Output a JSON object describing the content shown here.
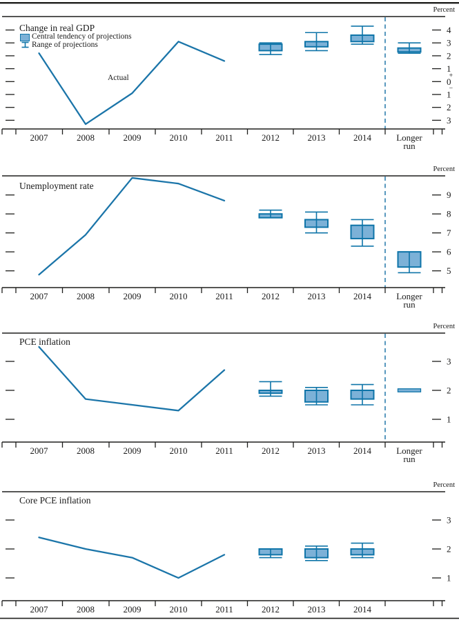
{
  "figure": {
    "unit_label": "Percent"
  },
  "legend": {
    "central_tendency": "Central tendency of projections",
    "range": "Range of projections"
  },
  "x_axis": {
    "years": [
      "2007",
      "2008",
      "2009",
      "2010",
      "2011",
      "2012",
      "2013",
      "2014"
    ],
    "longer_run_lines": [
      "Longer",
      "run"
    ]
  },
  "colors": {
    "line": "#1b75a9",
    "box_fill": "#7cb1d7",
    "box_border": "#0e74a8",
    "separator": "#2e7fae",
    "axis": "#1d1d1b",
    "text": "#1a1a1a"
  },
  "chart_data": [
    {
      "id": "change-in-real-gdp",
      "type": "line+box",
      "title": "Change in real GDP",
      "unit": "Percent",
      "y_ticks": [
        4,
        3,
        2,
        1,
        0,
        -1,
        -2,
        -3
      ],
      "y_tick_labels": [
        "4",
        "3",
        "2",
        "1",
        "0",
        "1",
        "2",
        "3"
      ],
      "sign_labels": [
        "+",
        "−"
      ],
      "actual": {
        "label": "Actual",
        "years": [
          "2007",
          "2008",
          "2009",
          "2010",
          "2011"
        ],
        "values": [
          2.2,
          -3.3,
          -0.9,
          3.1,
          1.6
        ]
      },
      "projections": [
        {
          "period": "2012",
          "central_tendency": [
            2.4,
            2.9
          ],
          "range": [
            2.1,
            3.0
          ]
        },
        {
          "period": "2013",
          "central_tendency": [
            2.7,
            3.1
          ],
          "range": [
            2.4,
            3.8
          ]
        },
        {
          "period": "2014",
          "central_tendency": [
            3.1,
            3.6
          ],
          "range": [
            2.9,
            4.3
          ]
        },
        {
          "period": "Longer run",
          "central_tendency": [
            2.3,
            2.6
          ],
          "range": [
            2.2,
            3.0
          ]
        }
      ],
      "has_longer_run": true
    },
    {
      "id": "unemployment-rate",
      "type": "line+box",
      "title": "Unemployment rate",
      "unit": "Percent",
      "y_ticks": [
        9,
        8,
        7,
        6,
        5
      ],
      "y_tick_labels": [
        "9",
        "8",
        "7",
        "6",
        "5"
      ],
      "actual": {
        "label": "",
        "years": [
          "2007",
          "2008",
          "2009",
          "2010",
          "2011"
        ],
        "values": [
          4.8,
          6.9,
          9.9,
          9.6,
          8.7
        ]
      },
      "projections": [
        {
          "period": "2012",
          "central_tendency": [
            7.8,
            8.0
          ],
          "range": [
            7.8,
            8.2
          ]
        },
        {
          "period": "2013",
          "central_tendency": [
            7.3,
            7.7
          ],
          "range": [
            7.0,
            8.1
          ]
        },
        {
          "period": "2014",
          "central_tendency": [
            6.7,
            7.4
          ],
          "range": [
            6.3,
            7.7
          ]
        },
        {
          "period": "Longer run",
          "central_tendency": [
            5.2,
            6.0
          ],
          "range": [
            4.9,
            6.0
          ]
        }
      ],
      "has_longer_run": true
    },
    {
      "id": "pce-inflation",
      "type": "line+box",
      "title": "PCE inflation",
      "unit": "Percent",
      "y_ticks": [
        3,
        2,
        1
      ],
      "y_tick_labels": [
        "3",
        "2",
        "1"
      ],
      "actual": {
        "label": "",
        "years": [
          "2007",
          "2008",
          "2009",
          "2010",
          "2011"
        ],
        "values": [
          3.5,
          1.7,
          1.5,
          1.3,
          2.7
        ]
      },
      "projections": [
        {
          "period": "2012",
          "central_tendency": [
            1.9,
            2.0
          ],
          "range": [
            1.8,
            2.3
          ]
        },
        {
          "period": "2013",
          "central_tendency": [
            1.6,
            2.0
          ],
          "range": [
            1.5,
            2.1
          ]
        },
        {
          "period": "2014",
          "central_tendency": [
            1.7,
            2.0
          ],
          "range": [
            1.5,
            2.2
          ]
        },
        {
          "period": "Longer run",
          "central_tendency": [
            2.0,
            2.0
          ],
          "range": [
            2.0,
            2.0
          ]
        }
      ],
      "has_longer_run": true
    },
    {
      "id": "core-pce-inflation",
      "type": "line+box",
      "title": "Core PCE inflation",
      "unit": "Percent",
      "y_ticks": [
        3,
        2,
        1
      ],
      "y_tick_labels": [
        "3",
        "2",
        "1"
      ],
      "actual": {
        "label": "",
        "years": [
          "2007",
          "2008",
          "2009",
          "2010",
          "2011"
        ],
        "values": [
          2.4,
          2.0,
          1.7,
          1.0,
          1.8
        ]
      },
      "projections": [
        {
          "period": "2012",
          "central_tendency": [
            1.8,
            2.0
          ],
          "range": [
            1.7,
            2.0
          ]
        },
        {
          "period": "2013",
          "central_tendency": [
            1.7,
            2.0
          ],
          "range": [
            1.6,
            2.1
          ]
        },
        {
          "period": "2014",
          "central_tendency": [
            1.8,
            2.0
          ],
          "range": [
            1.7,
            2.2
          ]
        }
      ],
      "has_longer_run": false
    }
  ]
}
